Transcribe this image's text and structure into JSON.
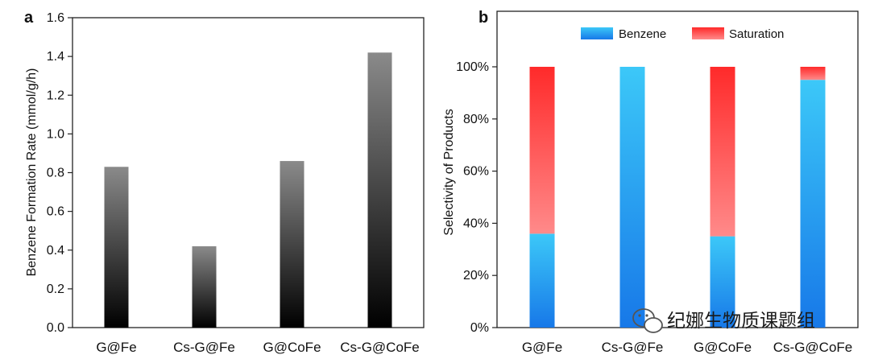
{
  "chart_data": [
    {
      "panel_label": "a",
      "type": "bar",
      "categories": [
        "G@Fe",
        "Cs-G@Fe",
        "G@CoFe",
        "Cs-G@CoFe"
      ],
      "values": [
        0.83,
        0.42,
        0.86,
        1.42
      ],
      "ylabel": "Benzene Formation Rate (mmol/g/h)",
      "ylim": [
        0,
        1.6
      ],
      "yticks": [
        "0.0",
        "0.2",
        "0.4",
        "0.6",
        "0.8",
        "1.0",
        "1.2",
        "1.4",
        "1.6"
      ],
      "bar_color_top": "#8a8a8a",
      "bar_color_bottom": "#000000",
      "grid": false
    },
    {
      "panel_label": "b",
      "type": "bar",
      "stacked": true,
      "categories": [
        "G@Fe",
        "Cs-G@Fe",
        "G@CoFe",
        "Cs-G@CoFe"
      ],
      "series": [
        {
          "name": "Benzene",
          "values": [
            36,
            100,
            35,
            95
          ],
          "color_top": "#3cc8f8",
          "color_bottom": "#1778e8"
        },
        {
          "name": "Saturation",
          "values": [
            64,
            0,
            65,
            5
          ],
          "color_top": "#ff2a2a",
          "color_bottom": "#ff8a8a"
        }
      ],
      "ylabel": "Selectivity of Products",
      "ylim": [
        0,
        100
      ],
      "yticks": [
        "0%",
        "20%",
        "40%",
        "60%",
        "80%",
        "100%"
      ],
      "legend_position": "top",
      "grid": false
    }
  ],
  "watermark": {
    "text": "纪娜生物质课题组",
    "icon": "wechat-icon"
  }
}
